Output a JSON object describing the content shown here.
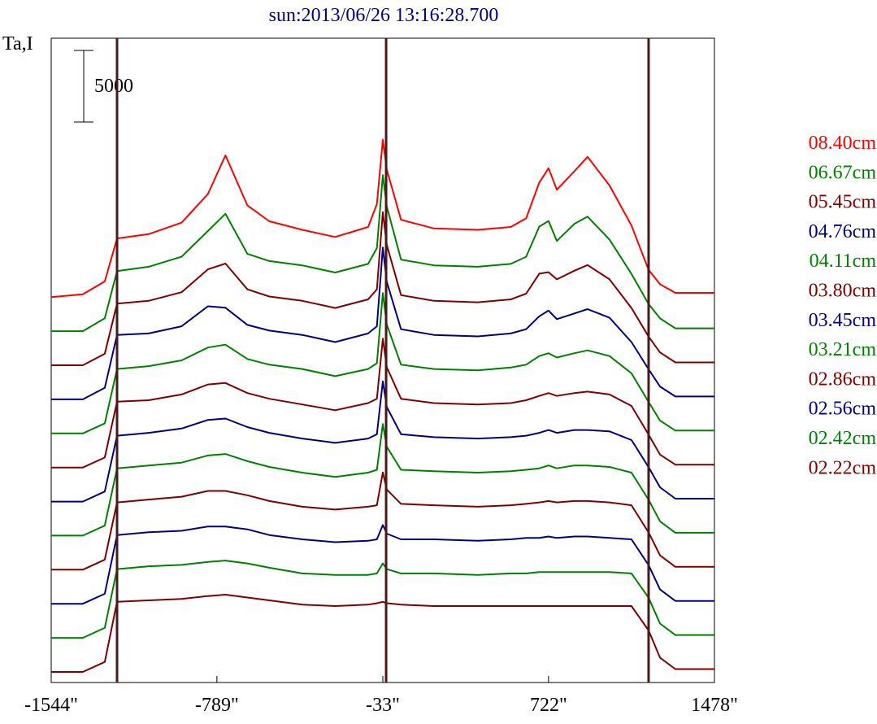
{
  "chart_data": {
    "type": "line",
    "title": "sun:2013/06/26 13:16:28.700",
    "ylabel": "Ta,I",
    "scale_bar_label": "5000",
    "x_ticks": [
      "-1544\"",
      "-789\"",
      "-33\"",
      "722\"",
      "1478\""
    ],
    "x_tick_values": [
      -1544,
      -789,
      -33,
      722,
      1478
    ],
    "xlim": [
      -1544,
      1478
    ],
    "vertical_markers": [
      -1244,
      -18,
      1178
    ],
    "scale_bar_value": 5000,
    "stack_offset": 2380,
    "colors": {
      "red": "#ff0000",
      "green": "#008000",
      "darkred": "#800000",
      "navy": "#000080",
      "title": "#000080",
      "marker": "#4a1a1a",
      "axis": "#000000"
    },
    "x": [
      -1544,
      -1400,
      -1300,
      -1244,
      -1100,
      -950,
      -830,
      -750,
      -650,
      -550,
      -400,
      -250,
      -100,
      -60,
      -33,
      -15,
      50,
      200,
      400,
      550,
      620,
      680,
      722,
      760,
      840,
      900,
      1000,
      1100,
      1178,
      1230,
      1300,
      1478
    ],
    "series": [
      {
        "name": "08.40cm",
        "color": "red",
        "values": [
          0,
          200,
          1100,
          4100,
          4400,
          5200,
          7200,
          9900,
          6400,
          5300,
          4700,
          4200,
          4900,
          6500,
          11000,
          8900,
          5400,
          4800,
          4700,
          4900,
          5500,
          8000,
          9000,
          7500,
          8800,
          9800,
          7800,
          5000,
          1900,
          900,
          300,
          300
        ]
      },
      {
        "name": "06.67cm",
        "color": "green",
        "values": [
          0,
          0,
          900,
          4200,
          4500,
          5200,
          7000,
          8200,
          5400,
          4900,
          4600,
          4100,
          4700,
          5800,
          10900,
          8700,
          5000,
          4600,
          4500,
          4700,
          5200,
          7300,
          7700,
          6300,
          7500,
          8000,
          6400,
          4000,
          1900,
          900,
          200,
          200
        ]
      },
      {
        "name": "05.45cm",
        "color": "darkred",
        "values": [
          0,
          0,
          800,
          4300,
          4500,
          5100,
          6700,
          7100,
          5300,
          4800,
          4500,
          4000,
          4600,
          5300,
          10700,
          8400,
          4900,
          4500,
          4400,
          4600,
          5000,
          6400,
          6500,
          6000,
          6600,
          7000,
          6000,
          4000,
          2000,
          900,
          200,
          200
        ]
      },
      {
        "name": "04.76cm",
        "color": "navy",
        "values": [
          0,
          0,
          800,
          4500,
          4600,
          5100,
          6500,
          6400,
          5200,
          4800,
          4500,
          4000,
          4600,
          5100,
          10600,
          8200,
          4900,
          4500,
          4400,
          4600,
          4900,
          5800,
          6200,
          5600,
          6000,
          6300,
          5700,
          4000,
          2100,
          900,
          200,
          200
        ]
      },
      {
        "name": "04.11cm",
        "color": "green",
        "values": [
          0,
          0,
          700,
          4500,
          4700,
          5100,
          6000,
          6200,
          5200,
          4800,
          4500,
          4000,
          4500,
          4900,
          9800,
          7600,
          4800,
          4500,
          4400,
          4600,
          4800,
          5400,
          5600,
          5300,
          5600,
          5800,
          5400,
          4200,
          2200,
          900,
          200,
          200
        ]
      },
      {
        "name": "03.80cm",
        "color": "darkred",
        "values": [
          0,
          0,
          700,
          4600,
          4700,
          5100,
          5800,
          5900,
          5200,
          4800,
          4400,
          4000,
          4500,
          4800,
          9000,
          7000,
          4800,
          4500,
          4400,
          4500,
          4700,
          5000,
          5200,
          5000,
          5200,
          5300,
          5100,
          4300,
          2300,
          900,
          200,
          200
        ]
      },
      {
        "name": "03.45cm",
        "color": "navy",
        "values": [
          0,
          0,
          700,
          4600,
          4800,
          5100,
          5700,
          5800,
          5200,
          4800,
          4400,
          4100,
          4400,
          4700,
          8400,
          6600,
          4700,
          4500,
          4400,
          4500,
          4600,
          4800,
          5000,
          4800,
          5000,
          5000,
          4900,
          4300,
          2400,
          1000,
          200,
          200
        ]
      },
      {
        "name": "03.21cm",
        "color": "green",
        "values": [
          0,
          0,
          700,
          4700,
          4900,
          5100,
          5600,
          5700,
          5200,
          4800,
          4400,
          4100,
          4400,
          4600,
          7800,
          6200,
          4600,
          4500,
          4400,
          4500,
          4600,
          4700,
          4900,
          4700,
          4900,
          4900,
          4800,
          4400,
          2500,
          1000,
          200,
          200
        ]
      },
      {
        "name": "02.86cm",
        "color": "darkred",
        "values": [
          0,
          0,
          700,
          4700,
          4900,
          5100,
          5500,
          5500,
          5200,
          4800,
          4400,
          4200,
          4400,
          4500,
          6800,
          5600,
          4600,
          4500,
          4400,
          4500,
          4600,
          4700,
          4800,
          4700,
          4800,
          4800,
          4700,
          4500,
          2600,
          1000,
          200,
          200
        ]
      },
      {
        "name": "02.56cm",
        "color": "navy",
        "values": [
          0,
          0,
          700,
          4800,
          5000,
          5100,
          5400,
          5400,
          5200,
          4800,
          4500,
          4300,
          4400,
          4500,
          5500,
          4900,
          4500,
          4500,
          4400,
          4500,
          4600,
          4600,
          4700,
          4600,
          4700,
          4700,
          4600,
          4500,
          2700,
          1000,
          200,
          200
        ]
      },
      {
        "name": "02.42cm",
        "color": "green",
        "values": [
          0,
          0,
          700,
          4800,
          5000,
          5100,
          5300,
          5400,
          5200,
          4900,
          4500,
          4400,
          4400,
          4500,
          5200,
          4800,
          4500,
          4500,
          4400,
          4500,
          4500,
          4600,
          4600,
          4600,
          4600,
          4600,
          4600,
          4500,
          2800,
          1000,
          200,
          200
        ]
      },
      {
        "name": "02.22cm",
        "color": "darkred",
        "values": [
          0,
          0,
          700,
          4900,
          5000,
          5100,
          5300,
          5400,
          5200,
          5000,
          4700,
          4600,
          4700,
          4800,
          4900,
          4800,
          4700,
          4600,
          4600,
          4600,
          4600,
          4600,
          4600,
          4600,
          4600,
          4600,
          4600,
          4600,
          2900,
          1000,
          200,
          200
        ]
      }
    ]
  }
}
